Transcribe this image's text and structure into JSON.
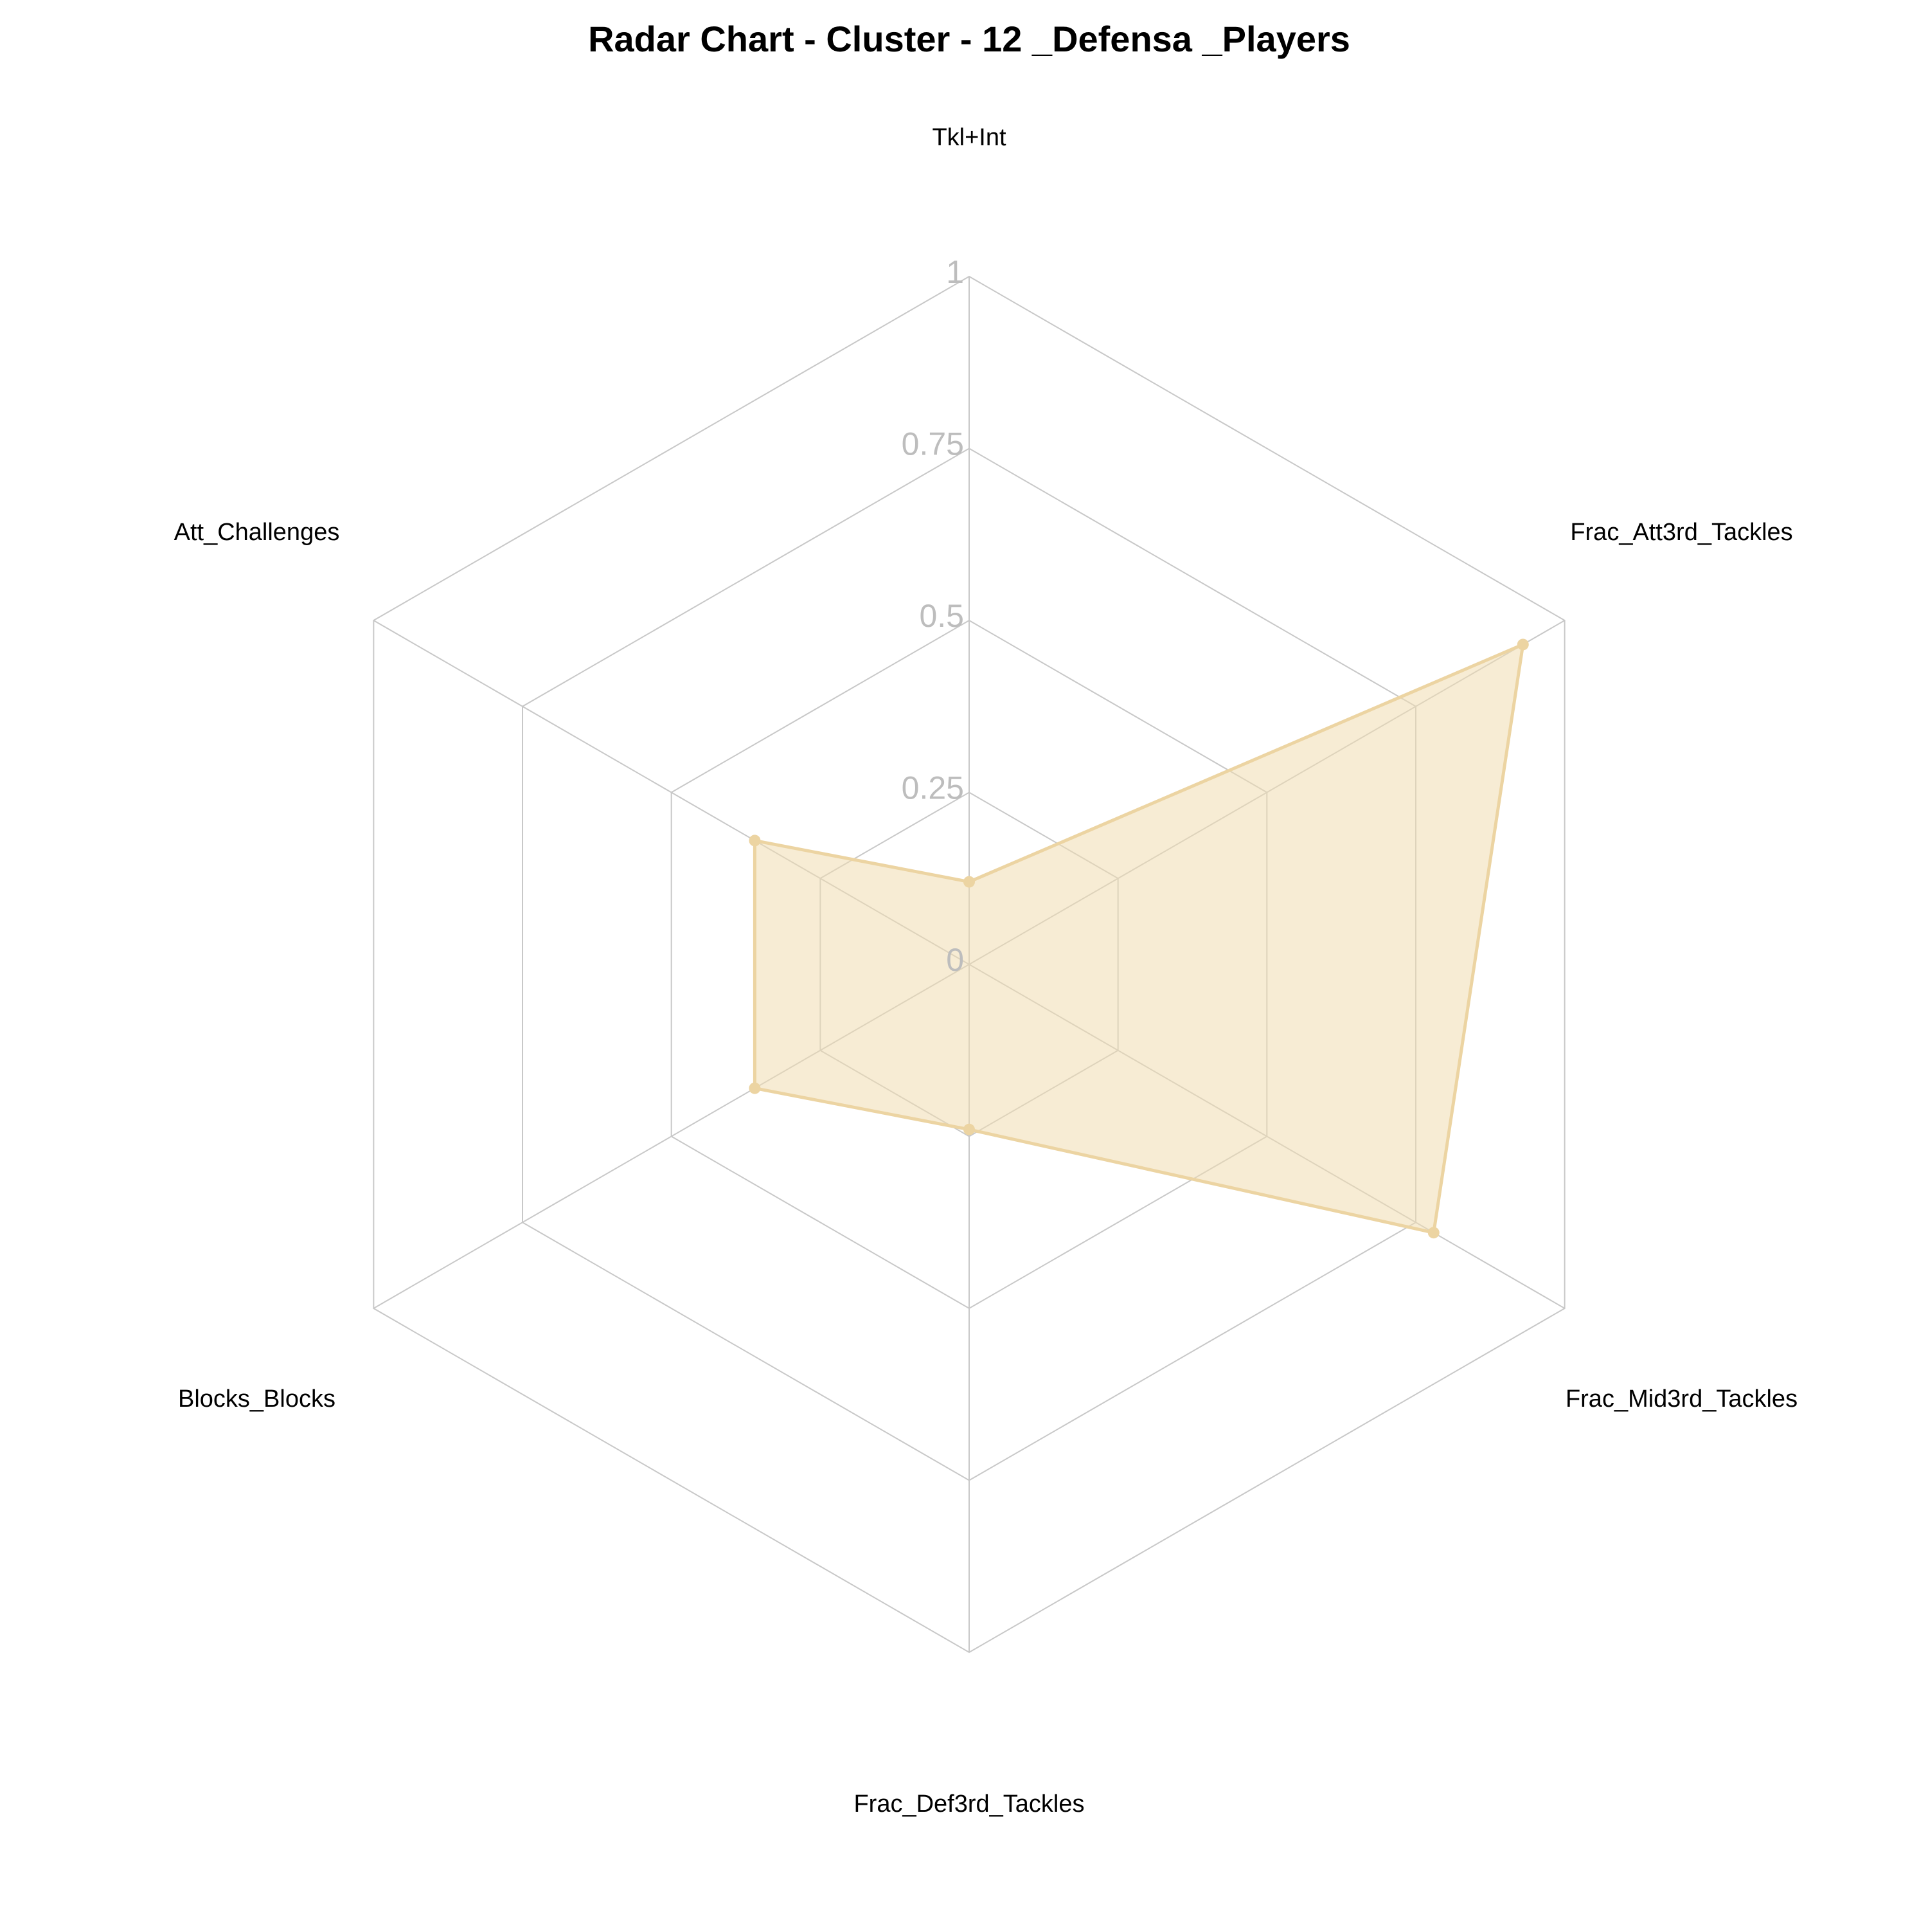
{
  "chart_data": {
    "type": "radar",
    "title": "Radar Chart - Cluster - 12 _Defensa _Players",
    "axes": [
      "Tkl+Int",
      "Frac_Att3rd_Tackles",
      "Frac_Mid3rd_Tackles",
      "Frac_Def3rd_Tackles",
      "Blocks_Blocks",
      "Att_Challenges"
    ],
    "rlim": [
      0,
      1
    ],
    "ticks": [
      "0",
      "0.25",
      "0.5",
      "0.75",
      "1"
    ],
    "tick_values": [
      0,
      0.25,
      0.5,
      0.75,
      1
    ],
    "series": [
      {
        "values": [
          0.12,
          0.93,
          0.78,
          0.24,
          0.36,
          0.36
        ]
      }
    ],
    "grid": true,
    "legend": "none",
    "colors": {
      "fill": "#f0dcb0",
      "line": "#ecd4a2",
      "point": "#ecd4a2",
      "grid": "#c8c8c8",
      "tick_label": "#bdbdbd"
    }
  }
}
